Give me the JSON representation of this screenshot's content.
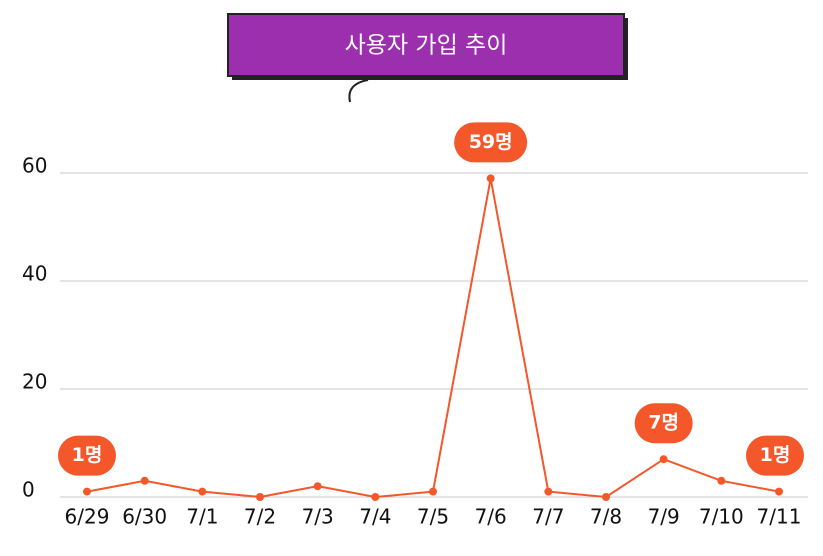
{
  "chart_data": {
    "type": "line",
    "title": "사용자 가입 추이",
    "categories": [
      "6/29",
      "6/30",
      "7/1",
      "7/2",
      "7/3",
      "7/4",
      "7/5",
      "7/6",
      "7/7",
      "7/8",
      "7/9",
      "7/10",
      "7/11"
    ],
    "values": [
      1,
      3,
      1,
      0,
      2,
      0,
      1,
      59,
      1,
      0,
      7,
      3,
      1
    ],
    "value_labels": [
      "1명",
      null,
      null,
      null,
      null,
      null,
      null,
      "59명",
      null,
      null,
      "7명",
      null,
      "1명"
    ],
    "color": "#f4572a",
    "ylim": [
      0,
      60
    ],
    "yticks": [
      0,
      20,
      40,
      60
    ],
    "grid": true
  }
}
